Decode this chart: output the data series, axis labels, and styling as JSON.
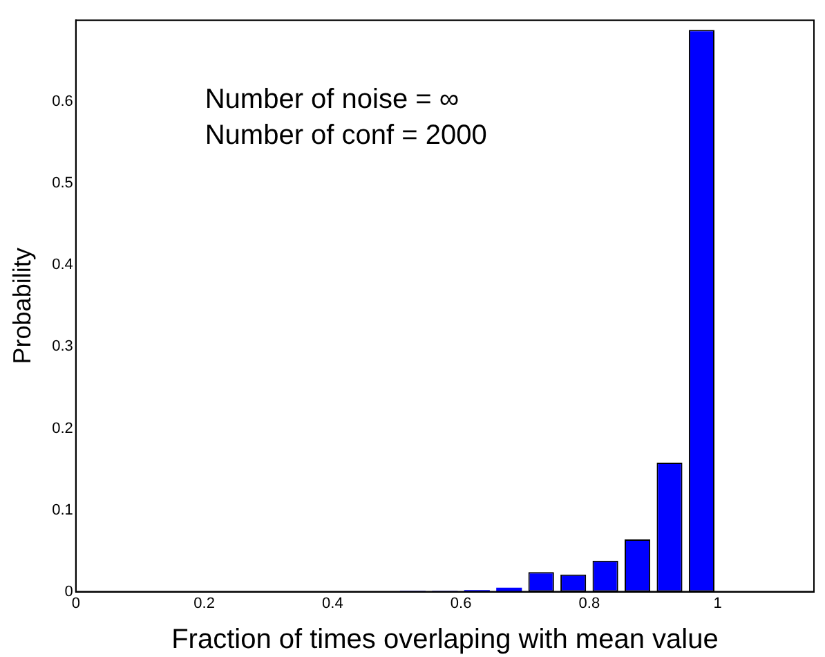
{
  "chart_data": {
    "type": "histogram",
    "xlabel": "Fraction of times overlaping with mean value",
    "ylabel": "Probability",
    "annotations": [
      "Number of noise = ∞",
      "Number of conf = 2000"
    ],
    "bins": [
      0,
      0.05,
      0.1,
      0.15,
      0.2,
      0.25,
      0.3,
      0.35,
      0.4,
      0.45,
      0.5,
      0.55,
      0.6,
      0.65,
      0.7,
      0.75,
      0.8,
      0.85,
      0.9,
      0.95,
      1
    ],
    "values": [
      0,
      0,
      0,
      0,
      0,
      0,
      0,
      0,
      0,
      0,
      0.001,
      0.001,
      0.002,
      0.005,
      0.024,
      0.021,
      0.038,
      0.064,
      0.158,
      0.688
    ],
    "color": "#0000ff",
    "xlim": [
      0,
      1.15
    ],
    "xticks": [
      0,
      0.2,
      0.4,
      0.6,
      0.8,
      1
    ],
    "ylim": [
      0,
      0.7
    ],
    "yticks": [
      0,
      0.1,
      0.2,
      0.3,
      0.4,
      0.5,
      0.6
    ],
    "grid": false
  }
}
